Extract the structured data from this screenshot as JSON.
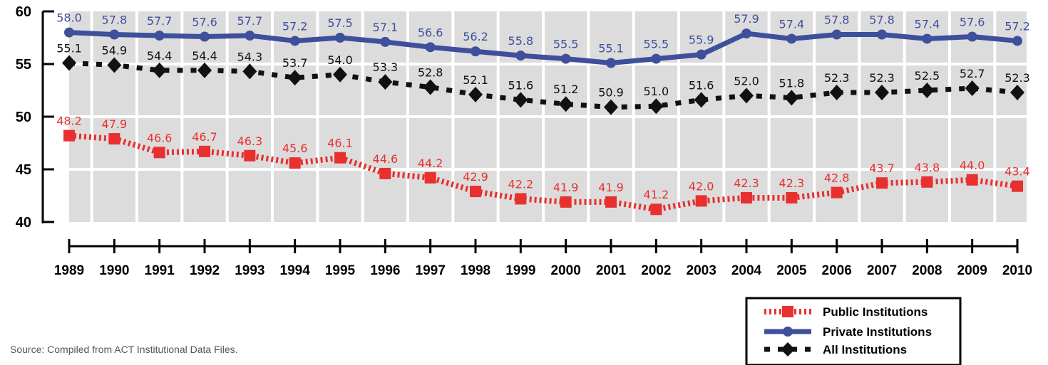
{
  "chart_data": {
    "type": "line",
    "title": "",
    "xlabel": "",
    "ylabel": "",
    "categories": [
      "1989",
      "1990",
      "1991",
      "1992",
      "1993",
      "1994",
      "1995",
      "1996",
      "1997",
      "1998",
      "1999",
      "2000",
      "2001",
      "2002",
      "2003",
      "2004",
      "2005",
      "2006",
      "2007",
      "2008",
      "2009",
      "2010"
    ],
    "ylim": [
      40,
      60
    ],
    "yticks": [
      40,
      45,
      50,
      55,
      60
    ],
    "grid": true,
    "legend_position": "bottom-right",
    "series": [
      {
        "name": "Public Institutions",
        "color": "#e8302e",
        "line_style": "dotted",
        "marker": "square",
        "values": [
          48.2,
          47.9,
          46.6,
          46.7,
          46.3,
          45.6,
          46.1,
          44.6,
          44.2,
          42.9,
          42.2,
          41.9,
          41.9,
          41.2,
          42.0,
          42.3,
          42.3,
          42.8,
          43.7,
          43.8,
          44.0,
          43.4
        ]
      },
      {
        "name": "Private Institutions",
        "color": "#3e4f9b",
        "line_style": "solid",
        "marker": "circle",
        "values": [
          58.0,
          57.8,
          57.7,
          57.6,
          57.7,
          57.2,
          57.5,
          57.1,
          56.6,
          56.2,
          55.8,
          55.5,
          55.1,
          55.5,
          55.9,
          57.9,
          57.4,
          57.8,
          57.8,
          57.4,
          57.6,
          57.2
        ]
      },
      {
        "name": "All Institutions",
        "color": "#111111",
        "line_style": "dashed",
        "marker": "diamond",
        "values": [
          55.1,
          54.9,
          54.4,
          54.4,
          54.3,
          53.7,
          54.0,
          53.3,
          52.8,
          52.1,
          51.6,
          51.2,
          50.9,
          51.0,
          51.6,
          52.0,
          51.8,
          52.3,
          52.3,
          52.5,
          52.7,
          52.3
        ]
      }
    ]
  },
  "source_note": "Source: Compiled from ACT Institutional Data Files."
}
